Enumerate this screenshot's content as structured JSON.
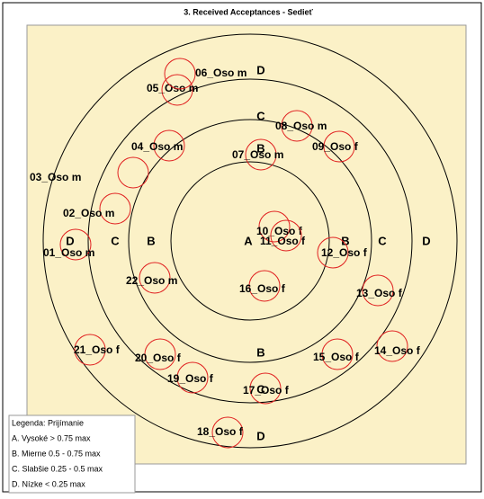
{
  "title": "3. Received Acceptances - Sedieť",
  "zone_labels": [
    "A",
    "B",
    "B",
    "B",
    "B",
    "C",
    "C",
    "C",
    "C",
    "D",
    "D",
    "D",
    "D"
  ],
  "nodes": [
    {
      "label": "01_Oso m"
    },
    {
      "label": "02_Oso m"
    },
    {
      "label": "03_Oso m"
    },
    {
      "label": "04_Oso m"
    },
    {
      "label": "05_Oso m"
    },
    {
      "label": "06_Oso m"
    },
    {
      "label": "07_Oso m"
    },
    {
      "label": "08_Oso m"
    },
    {
      "label": "09_Oso f"
    },
    {
      "label": "10_Oso f"
    },
    {
      "label": "11_Oso f"
    },
    {
      "label": "12_Oso f"
    },
    {
      "label": "13_Oso f"
    },
    {
      "label": "14_Oso f"
    },
    {
      "label": "15_Oso f"
    },
    {
      "label": "16_Oso f"
    },
    {
      "label": "17_Oso f"
    },
    {
      "label": "18_Oso f"
    },
    {
      "label": "19_Oso f"
    },
    {
      "label": "20_Oso f"
    },
    {
      "label": "21_Oso f"
    },
    {
      "label": "22_Oso m"
    }
  ],
  "legend": {
    "title": "Legenda: Prijímanie",
    "items": [
      "A. Vysoké > 0.75 max",
      "B. Mierne 0.5 - 0.75 max",
      "C. Slabšie 0.25 - 0.5 max",
      "D. Nízke < 0.25 max"
    ]
  }
}
